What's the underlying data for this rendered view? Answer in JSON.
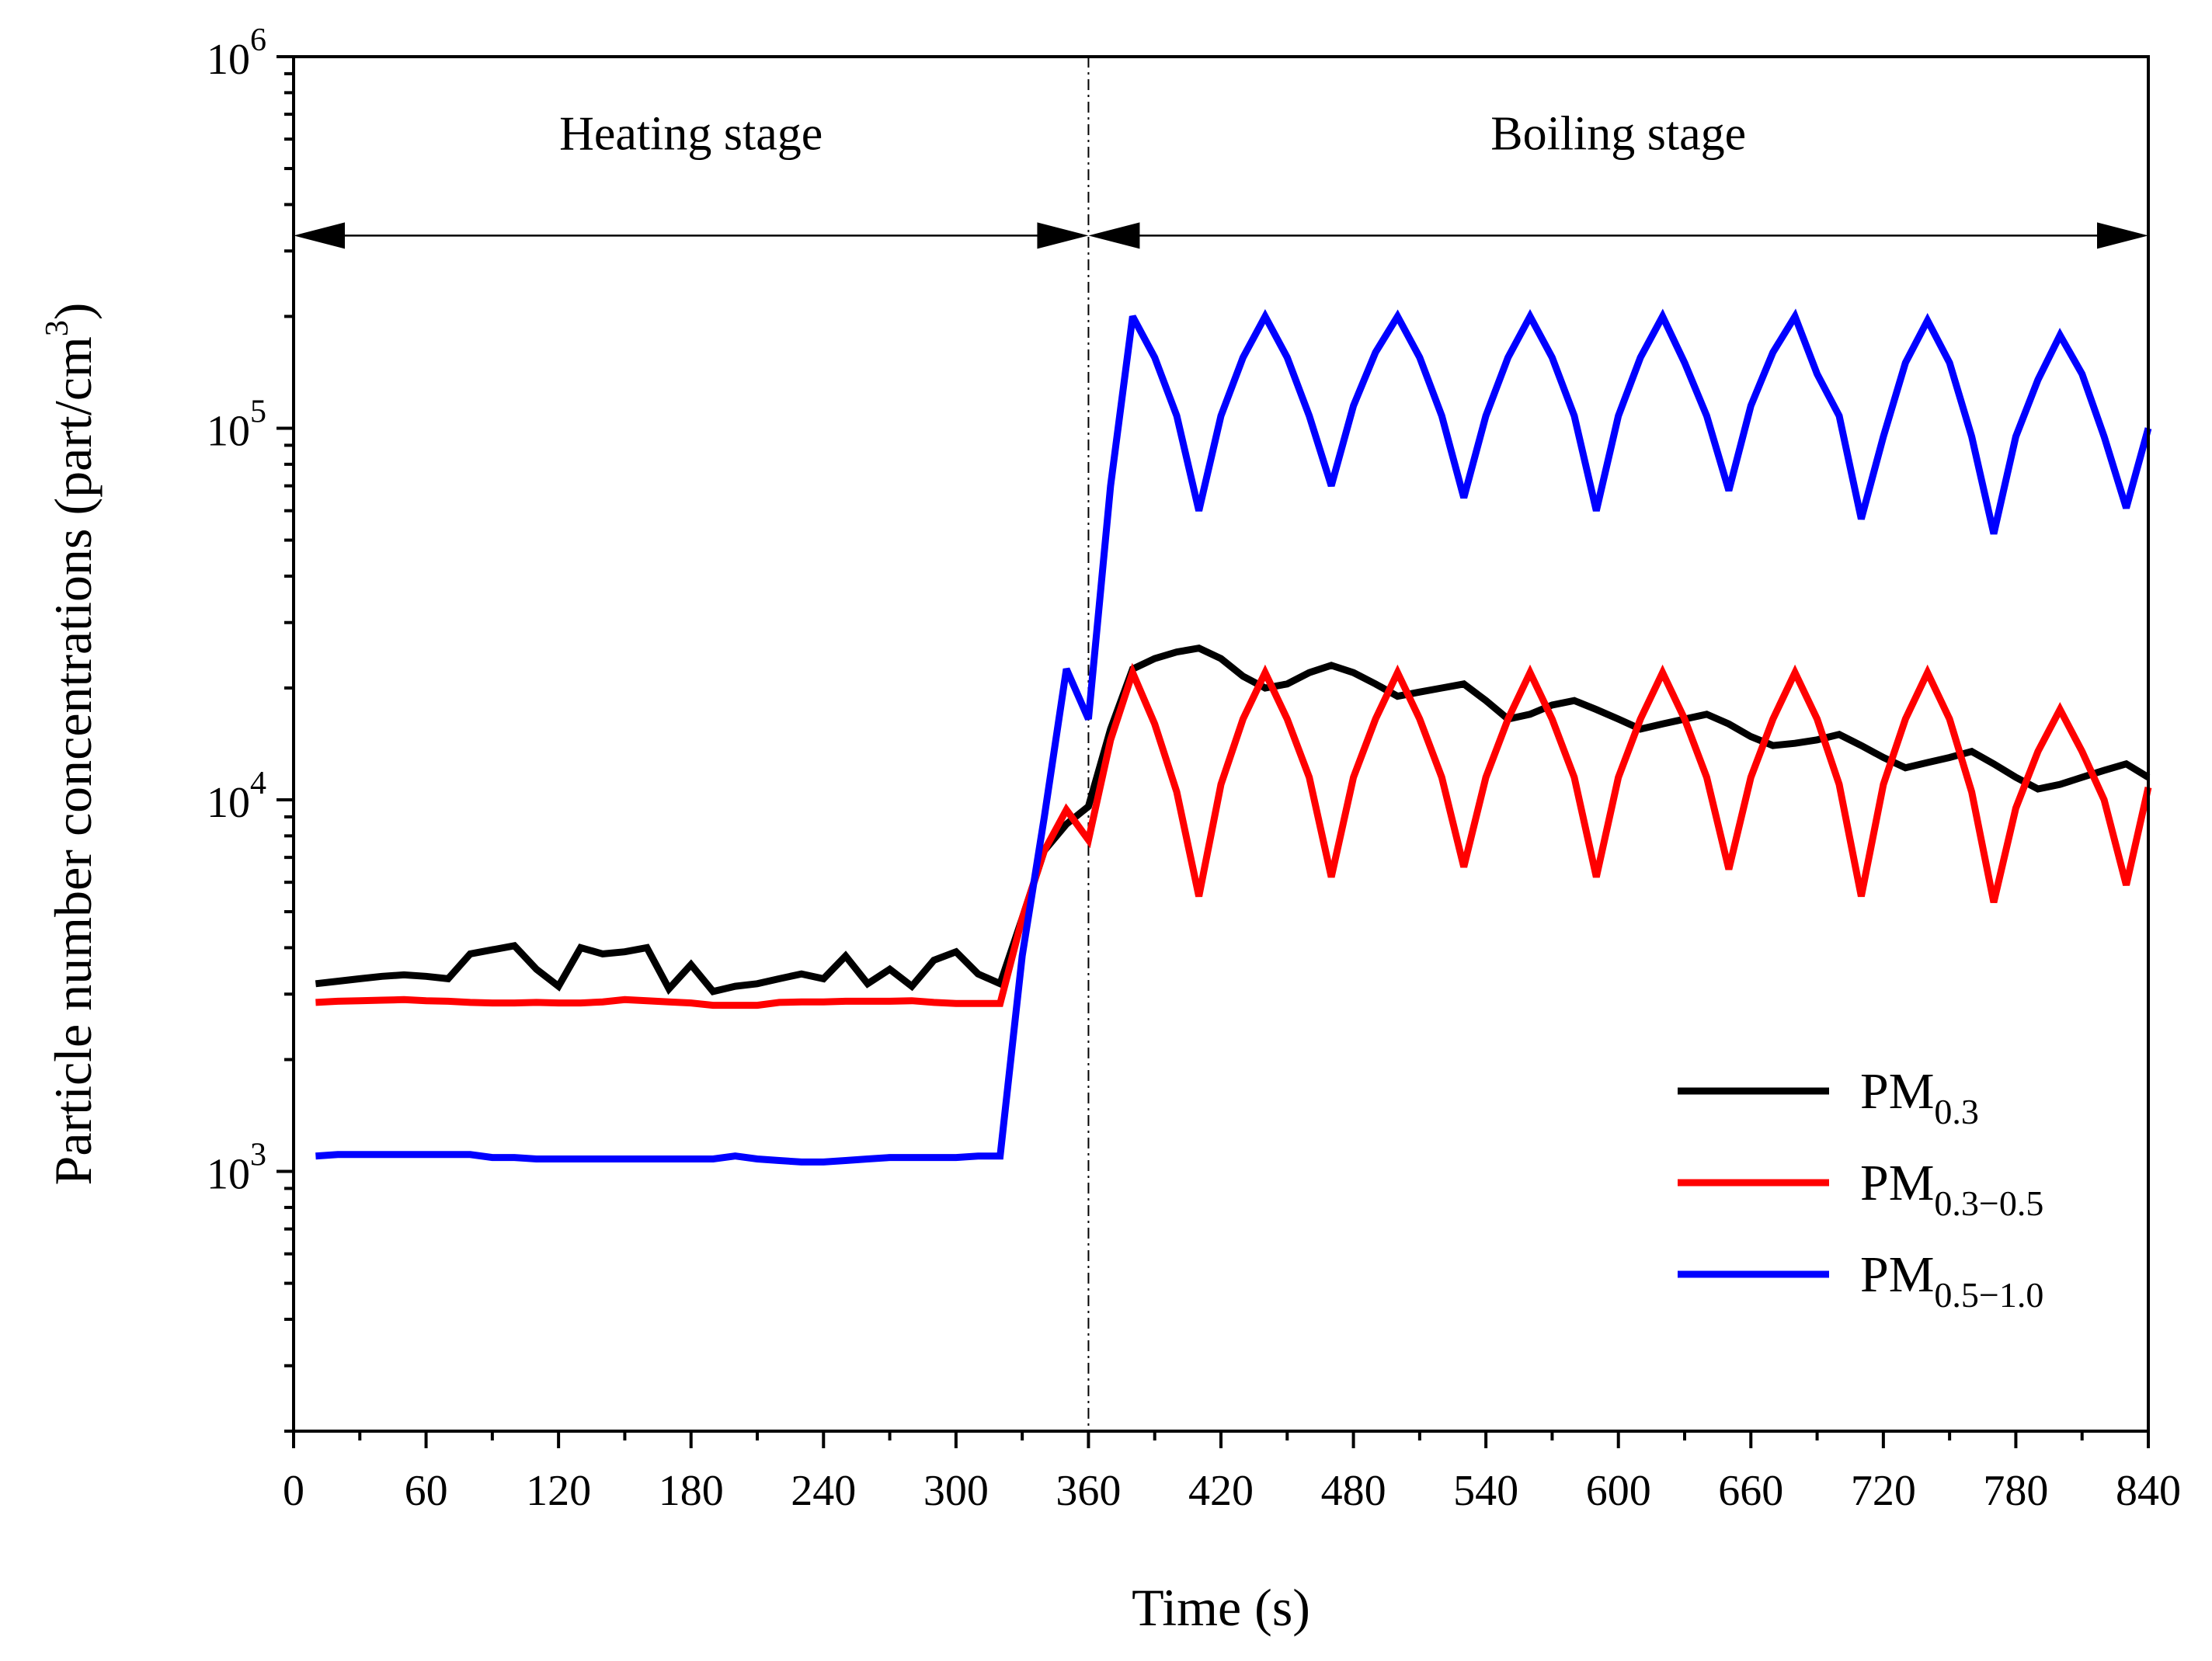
{
  "chart_data": {
    "type": "line",
    "xlabel": "Time (s)",
    "ylabel": {
      "main": "Particle number concentrations (part/cm",
      "sup": "3",
      "close": ")"
    },
    "xlim": [
      0,
      840
    ],
    "ylim": [
      200,
      1000000
    ],
    "yscale": "log",
    "x_ticks": [
      0,
      60,
      120,
      180,
      240,
      300,
      360,
      420,
      480,
      540,
      600,
      660,
      720,
      780,
      840
    ],
    "x_tick_labels": [
      "0",
      "60",
      "120",
      "180",
      "240",
      "300",
      "360",
      "420",
      "480",
      "540",
      "600",
      "660",
      "720",
      "780",
      "840"
    ],
    "y_ticks": [
      {
        "value": 1000,
        "base": "10",
        "exp": "3"
      },
      {
        "value": 10000,
        "base": "10",
        "exp": "4"
      },
      {
        "value": 100000,
        "base": "10",
        "exp": "5"
      },
      {
        "value": 1000000,
        "base": "10",
        "exp": "6"
      }
    ],
    "divider_x": 360,
    "annotations": [
      {
        "text": "Heating stage",
        "x_start": 0,
        "x_end": 360,
        "y": 330000,
        "label_y": 620000
      },
      {
        "text": "Boiling  stage",
        "x_start": 360,
        "x_end": 840,
        "y": 330000,
        "label_y": 620000
      }
    ],
    "legend_position": "bottom-right",
    "x": [
      10,
      20,
      30,
      40,
      50,
      60,
      70,
      80,
      90,
      100,
      110,
      120,
      130,
      140,
      150,
      160,
      170,
      180,
      190,
      200,
      210,
      220,
      230,
      240,
      250,
      260,
      270,
      280,
      290,
      300,
      310,
      320,
      330,
      340,
      350,
      360,
      370,
      380,
      390,
      400,
      410,
      420,
      430,
      440,
      450,
      460,
      470,
      480,
      490,
      500,
      510,
      520,
      530,
      540,
      550,
      560,
      570,
      580,
      590,
      600,
      610,
      620,
      630,
      640,
      650,
      660,
      670,
      680,
      690,
      700,
      710,
      720,
      730,
      740,
      750,
      760,
      770,
      780,
      790,
      800,
      810,
      820,
      830,
      840
    ],
    "series": [
      {
        "name": "PM",
        "sub": "0.3",
        "color": "#000000",
        "values": [
          3200,
          3250,
          3300,
          3350,
          3380,
          3350,
          3300,
          3850,
          3950,
          4050,
          3500,
          3150,
          4000,
          3850,
          3900,
          4000,
          3100,
          3600,
          3050,
          3150,
          3200,
          3300,
          3400,
          3300,
          3800,
          3200,
          3500,
          3150,
          3700,
          3900,
          3400,
          3200,
          4800,
          7300,
          8600,
          9600,
          15500,
          22500,
          24000,
          25000,
          25600,
          24000,
          21500,
          20000,
          20500,
          22000,
          23000,
          22000,
          20500,
          19000,
          19500,
          20000,
          20500,
          18500,
          16500,
          17000,
          18000,
          18500,
          17500,
          16500,
          15500,
          16000,
          16500,
          17000,
          16000,
          14800,
          14000,
          14200,
          14500,
          15000,
          14000,
          13000,
          12200,
          12600,
          13000,
          13500,
          12500,
          11500,
          10700,
          11000,
          11500,
          12000,
          12500,
          11500
        ]
      },
      {
        "name": "PM",
        "sub": "0.3−0.5",
        "color": "#ff0000",
        "values": [
          2850,
          2870,
          2880,
          2890,
          2900,
          2880,
          2870,
          2850,
          2840,
          2840,
          2850,
          2840,
          2840,
          2860,
          2900,
          2880,
          2860,
          2840,
          2800,
          2800,
          2800,
          2850,
          2860,
          2860,
          2870,
          2870,
          2870,
          2880,
          2850,
          2830,
          2830,
          2830,
          4800,
          7300,
          9400,
          7800,
          14500,
          22000,
          16000,
          10500,
          5500,
          11000,
          16500,
          22000,
          16500,
          11500,
          6200,
          11500,
          16500,
          22000,
          16500,
          11500,
          6600,
          11500,
          16500,
          22000,
          16500,
          11500,
          6200,
          11500,
          16500,
          22000,
          16500,
          11500,
          6500,
          11500,
          16500,
          22000,
          16500,
          11000,
          5500,
          11000,
          16500,
          22000,
          16500,
          10500,
          5300,
          9500,
          13500,
          17500,
          13500,
          10000,
          5900,
          10800
        ]
      },
      {
        "name": "PM",
        "sub": "0.5−1.0",
        "color": "#0000ff",
        "values": [
          1100,
          1110,
          1110,
          1110,
          1110,
          1110,
          1110,
          1110,
          1090,
          1090,
          1080,
          1080,
          1080,
          1080,
          1080,
          1080,
          1080,
          1080,
          1080,
          1100,
          1080,
          1070,
          1060,
          1060,
          1070,
          1080,
          1090,
          1090,
          1090,
          1090,
          1100,
          1100,
          3800,
          9000,
          22500,
          16500,
          70000,
          200000,
          155000,
          108000,
          60000,
          108000,
          155000,
          200000,
          155000,
          108000,
          70000,
          115000,
          160000,
          200000,
          155000,
          108000,
          65000,
          108000,
          155000,
          200000,
          155000,
          108000,
          60000,
          108000,
          155000,
          200000,
          150000,
          108000,
          68000,
          115000,
          160000,
          200000,
          140000,
          108000,
          57000,
          95000,
          150000,
          195000,
          150000,
          95000,
          52000,
          95000,
          135000,
          178000,
          140000,
          95000,
          61000,
          100000
        ]
      }
    ]
  }
}
